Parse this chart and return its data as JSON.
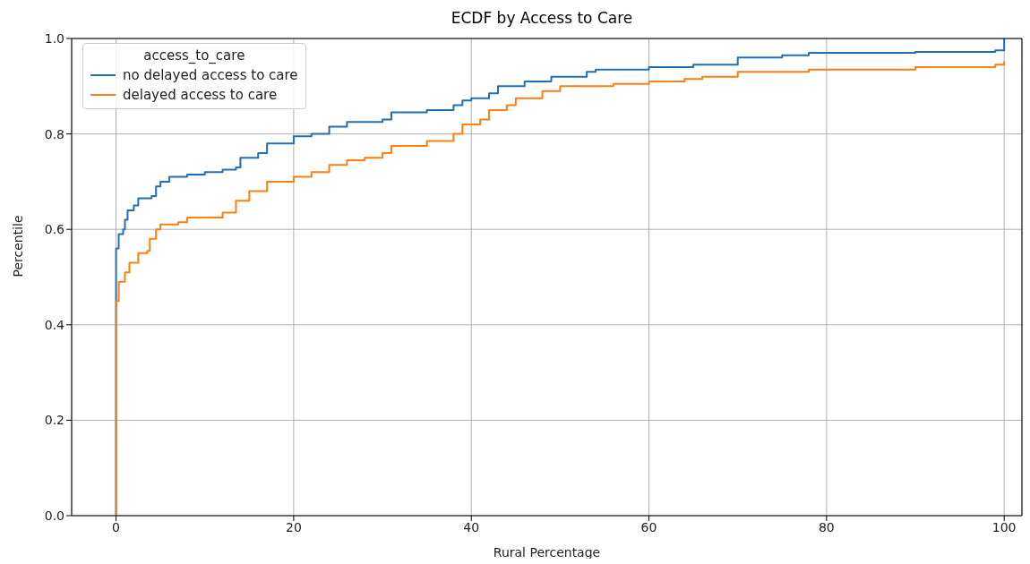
{
  "chart_data": {
    "type": "step",
    "title": "ECDF by Access to Care",
    "xlabel": "Rural Percentage",
    "ylabel": "Percentile",
    "legend_title": "access_to_care",
    "legend": "top left",
    "grid": true,
    "line_style": "solid",
    "xlim": [
      -5,
      102
    ],
    "xticks": [
      0,
      20,
      40,
      60,
      80,
      100
    ],
    "ylim": [
      0,
      1
    ],
    "yticks": [
      {
        "value": 0,
        "label": "0.0"
      },
      {
        "value": 0.2,
        "label": "0.2"
      },
      {
        "value": 0.4,
        "label": "0.4"
      },
      {
        "value": 0.6,
        "label": "0.6"
      },
      {
        "value": 0.8,
        "label": "0.8"
      },
      {
        "value": 1,
        "label": "1.0"
      }
    ],
    "series": [
      {
        "name": "no delayed access to care",
        "color": "#1f6fb4",
        "x": [
          0,
          0,
          0.3,
          0.8,
          1,
          1.3,
          2,
          2.5,
          4,
          4.5,
          5,
          6,
          8,
          10,
          12,
          13.5,
          14,
          16,
          17,
          20,
          22,
          24,
          26,
          30,
          31,
          35,
          38,
          39,
          40,
          42,
          43,
          46,
          49,
          53,
          54,
          60,
          65,
          70,
          75,
          78,
          90,
          99,
          100,
          100
        ],
        "values": [
          0,
          0.56,
          0.59,
          0.6,
          0.62,
          0.64,
          0.65,
          0.665,
          0.67,
          0.69,
          0.7,
          0.71,
          0.715,
          0.72,
          0.725,
          0.73,
          0.75,
          0.76,
          0.78,
          0.795,
          0.8,
          0.815,
          0.825,
          0.83,
          0.845,
          0.85,
          0.86,
          0.87,
          0.875,
          0.885,
          0.9,
          0.91,
          0.92,
          0.93,
          0.935,
          0.94,
          0.945,
          0.96,
          0.965,
          0.97,
          0.972,
          0.975,
          0.98,
          1
        ]
      },
      {
        "name": "delayed access to care",
        "color": "#ff7f0e",
        "x": [
          0,
          0,
          0.3,
          1,
          1.5,
          2.5,
          3.5,
          3.8,
          4.5,
          5,
          7,
          8,
          12,
          13.5,
          15,
          17,
          20,
          22,
          24,
          26,
          28,
          30,
          31,
          35,
          38,
          39,
          41,
          42,
          44,
          45,
          48,
          50,
          56,
          60,
          64,
          66,
          70,
          78,
          90,
          99,
          100
        ],
        "values": [
          0,
          0.45,
          0.49,
          0.51,
          0.53,
          0.55,
          0.555,
          0.58,
          0.6,
          0.61,
          0.615,
          0.625,
          0.635,
          0.66,
          0.68,
          0.7,
          0.71,
          0.72,
          0.735,
          0.745,
          0.75,
          0.76,
          0.775,
          0.785,
          0.8,
          0.82,
          0.83,
          0.85,
          0.86,
          0.875,
          0.89,
          0.9,
          0.905,
          0.91,
          0.915,
          0.92,
          0.93,
          0.935,
          0.94,
          0.945,
          0.952
        ]
      }
    ]
  }
}
